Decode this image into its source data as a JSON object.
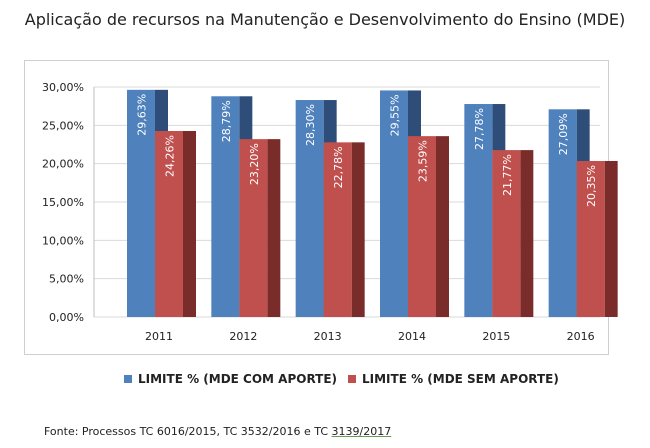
{
  "title": "Aplicação de recursos na Manutenção e Desenvolvimento do Ensino (MDE)",
  "legend": [
    {
      "label": "LIMITE % (MDE COM APORTE)",
      "color": "#4F81BD"
    },
    {
      "label": "LIMITE % (MDE SEM APORTE)",
      "color": "#C0504D"
    }
  ],
  "source": {
    "prefix": "Fonte: Processos TC 6016/2015, TC 3532/2016 e TC ",
    "underlined": "3139/2017"
  },
  "colors": {
    "blue_front": "#4F81BD",
    "blue_side": "#2E4E79",
    "red_front": "#C0504D",
    "red_side": "#7A2C2A",
    "grid": "#d9d9d9"
  },
  "chart_data": {
    "type": "bar",
    "categories": [
      "2011",
      "2012",
      "2013",
      "2014",
      "2015",
      "2016"
    ],
    "series": [
      {
        "name": "LIMITE % (MDE COM APORTE)",
        "values": [
          29.63,
          28.79,
          28.3,
          29.55,
          27.78,
          27.09
        ],
        "labels": [
          "29,63%",
          "28,79%",
          "28,30%",
          "29,55%",
          "27,78%",
          "27,09%"
        ]
      },
      {
        "name": "LIMITE % (MDE SEM APORTE)",
        "values": [
          24.26,
          23.2,
          22.78,
          23.59,
          21.77,
          20.35
        ],
        "labels": [
          "24,26%",
          "23,20%",
          "22,78%",
          "23,59%",
          "21,77%",
          "20,35%"
        ]
      }
    ],
    "yticks": [
      "0,00%",
      "5,00%",
      "10,00%",
      "15,00%",
      "20,00%",
      "25,00%",
      "30,00%"
    ],
    "ylim": [
      0,
      30
    ],
    "grid": true,
    "legend_position": "bottom",
    "data_labels_rotated": true
  }
}
